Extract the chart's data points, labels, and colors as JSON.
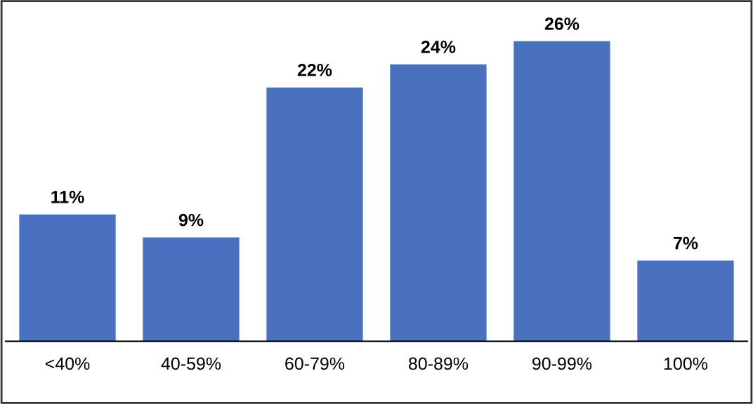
{
  "chart_data": {
    "type": "bar",
    "categories": [
      "<40%",
      "40-59%",
      "60-79%",
      "80-89%",
      "90-99%",
      "100%"
    ],
    "values": [
      11,
      9,
      22,
      24,
      26,
      7
    ],
    "value_labels": [
      "11%",
      "9%",
      "22%",
      "24%",
      "26%",
      "7%"
    ],
    "color": "#4a70c0",
    "tick_labels": "x",
    "grid": false,
    "legend": false
  }
}
